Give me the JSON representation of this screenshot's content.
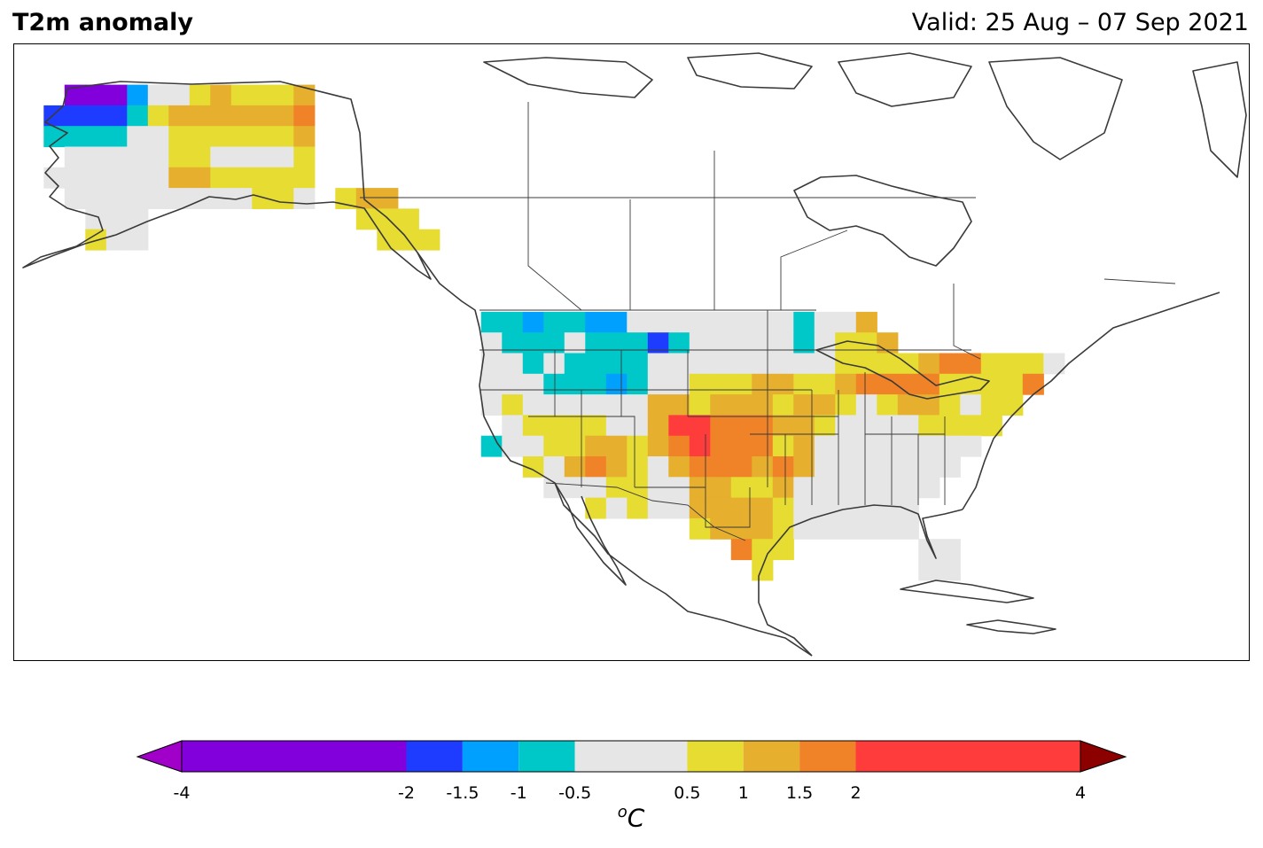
{
  "title_left": "T2m anomaly",
  "title_right": "Valid: 25 Aug – 07 Sep 2021",
  "colorbar": {
    "unit_base": "C",
    "unit_sup": "o",
    "ticks": [
      "-4",
      "-2",
      "-1.5",
      "-1",
      "-0.5",
      "0.5",
      "1",
      "1.5",
      "2",
      "4"
    ],
    "levels": [
      -4,
      -2,
      -1.5,
      -1,
      -0.5,
      0.5,
      1,
      1.5,
      2,
      4
    ],
    "colors": [
      "#8200dc",
      "#1e3cff",
      "#00a0ff",
      "#00c8c8",
      "#e6e6e6",
      "#e6dc32",
      "#e6af2d",
      "#f08228",
      "#ff3c3c"
    ],
    "under_color": "#a000c8",
    "over_color": "#8c0000",
    "extend": "both"
  },
  "chart_data": {
    "type": "heatmap",
    "region": "North America",
    "variable": "2 m temperature anomaly",
    "units": "degC",
    "anomaly_patterns": [
      {
        "area": "western Alaska",
        "class": "-4 to -2"
      },
      {
        "area": "southwest Alaska",
        "class": "-2 to -1.5"
      },
      {
        "area": "central Alaska",
        "class": "0.5 to 1.5"
      },
      {
        "area": "Pacific Northwest / northern Rockies",
        "class": "-1 to -0.5"
      },
      {
        "area": "Montana",
        "class": "-1.5 to -1"
      },
      {
        "area": "central Plains (Kansas/Oklahoma)",
        "class": "2 to 4"
      },
      {
        "area": "Texas",
        "class": "1 to 2"
      },
      {
        "area": "Great Lakes / Northeast",
        "class": "1 to 2"
      },
      {
        "area": "Southeast US",
        "class": "-0.5 to 0.5"
      }
    ]
  }
}
